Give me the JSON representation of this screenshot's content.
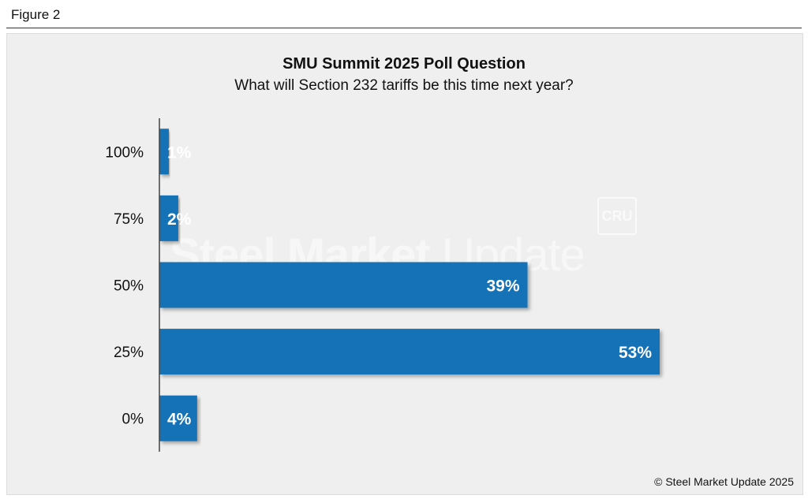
{
  "figure_label": "Figure 2",
  "copyright": "© Steel Market Update 2025",
  "watermark": {
    "bold": "Steel Market",
    "light": "Update",
    "badge": "CRU"
  },
  "colors": {
    "bar": "#1272b6",
    "axis": "#444444"
  },
  "chart_data": {
    "type": "bar",
    "orientation": "horizontal",
    "title": "SMU Summit 2025 Poll Question",
    "subtitle": "What will Section 232 tariffs be this time next year?",
    "xlabel": "",
    "ylabel": "",
    "categories": [
      "100%",
      "75%",
      "50%",
      "25%",
      "0%"
    ],
    "values": [
      1,
      2,
      39,
      53,
      4
    ],
    "value_labels": [
      "1%",
      "2%",
      "39%",
      "53%",
      "4%"
    ],
    "xlim": [
      0,
      53
    ],
    "grid": false,
    "legend": "none"
  }
}
